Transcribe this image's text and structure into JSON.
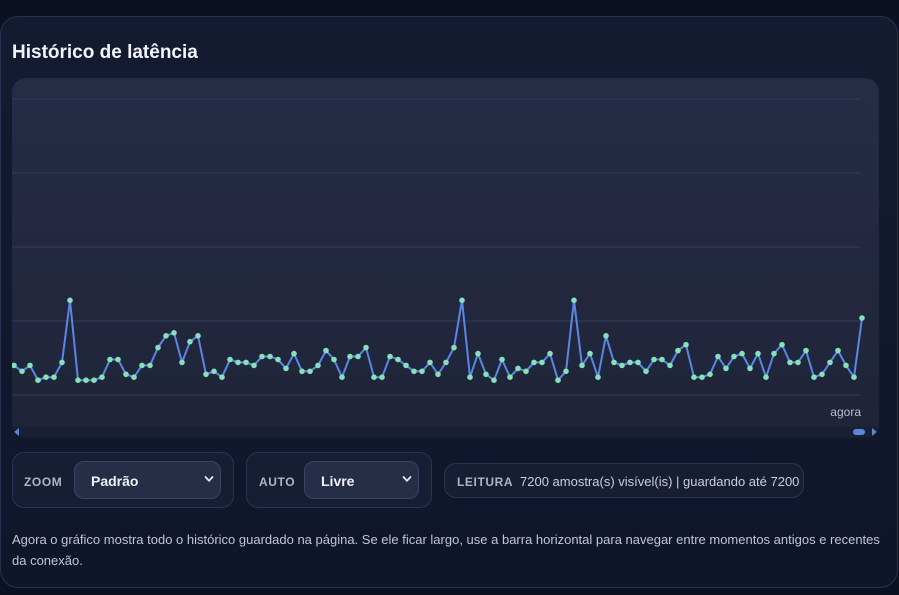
{
  "panel": {
    "title": "Histórico de latência"
  },
  "chart_data": {
    "type": "line",
    "x_label_right": "agora",
    "grid": true,
    "colors": {
      "line": "#5b86e6",
      "point": "#86e0b8"
    },
    "ylim": [
      0,
      100
    ],
    "values": [
      10,
      8,
      10,
      5,
      6,
      6,
      11,
      32,
      5,
      5,
      5,
      6,
      12,
      12,
      7,
      6,
      10,
      10,
      16,
      20,
      21,
      11,
      18,
      20,
      7,
      8,
      6,
      12,
      11,
      11,
      10,
      13,
      13,
      12,
      9,
      14,
      8,
      8,
      10,
      15,
      12,
      6,
      13,
      13,
      16,
      6,
      6,
      13,
      12,
      10,
      8,
      8,
      11,
      7,
      11,
      16,
      32,
      6,
      14,
      7,
      5,
      12,
      6,
      9,
      8,
      11,
      11,
      14,
      5,
      8,
      32,
      10,
      14,
      6,
      20,
      11,
      10,
      11,
      11,
      8,
      12,
      12,
      10,
      15,
      17,
      6,
      6,
      7,
      13,
      9,
      13,
      14,
      9,
      14,
      6,
      14,
      17,
      11,
      11,
      15,
      6,
      7,
      11,
      15,
      10,
      6,
      26
    ]
  },
  "controls": {
    "zoom": {
      "label": "ZOOM",
      "value": "Padrão"
    },
    "auto": {
      "label": "AUTO",
      "value": "Livre"
    },
    "reading": {
      "label": "LEITURA",
      "value": "7200 amostra(s) visível(is) | guardando até 7200"
    }
  },
  "note": "Agora o gráfico mostra todo o histórico guardado na página. Se ele ficar largo, use a barra horizontal para navegar entre momentos antigos e recentes da conexão.",
  "icons": {
    "select_chevron": "chevron-down-icon",
    "scroll_left": "arrow-left-icon",
    "scroll_right": "arrow-right-icon"
  }
}
